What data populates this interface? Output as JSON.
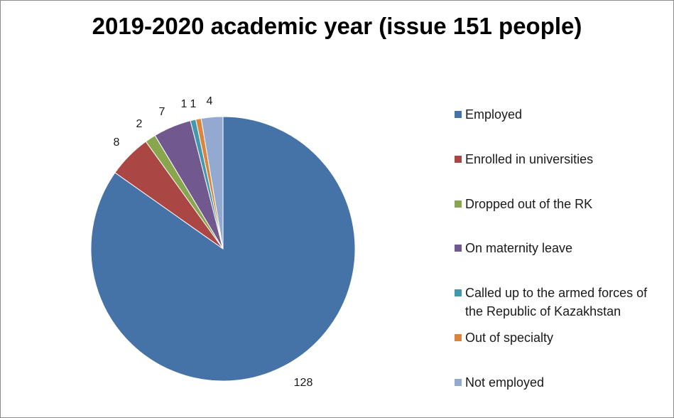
{
  "chart_data": {
    "type": "pie",
    "title": "2019-2020 academic year (issue 151 people)",
    "categories": [
      "Employed",
      "Enrolled in universities",
      "Dropped out of the RK",
      "On maternity leave",
      "Called up to the armed forces of the Republic of Kazakhstan",
      "Out of specialty",
      "Not employed"
    ],
    "legend_lines": [
      [
        "Employed"
      ],
      [
        "Enrolled in universities"
      ],
      [
        "Dropped out of the RK"
      ],
      [
        "On maternity leave"
      ],
      [
        "Called up to the armed forces of",
        "the Republic of Kazakhstan"
      ],
      [
        "Out of specialty"
      ],
      [
        "Not employed"
      ]
    ],
    "values": [
      128,
      8,
      2,
      7,
      1,
      1,
      4
    ],
    "colors": [
      "#4572A7",
      "#AA4643",
      "#89A54E",
      "#71588F",
      "#4198AF",
      "#DB843D",
      "#93A9CF"
    ],
    "legend_position": "right",
    "start_angle": "12 o'clock",
    "direction": "clockwise"
  }
}
